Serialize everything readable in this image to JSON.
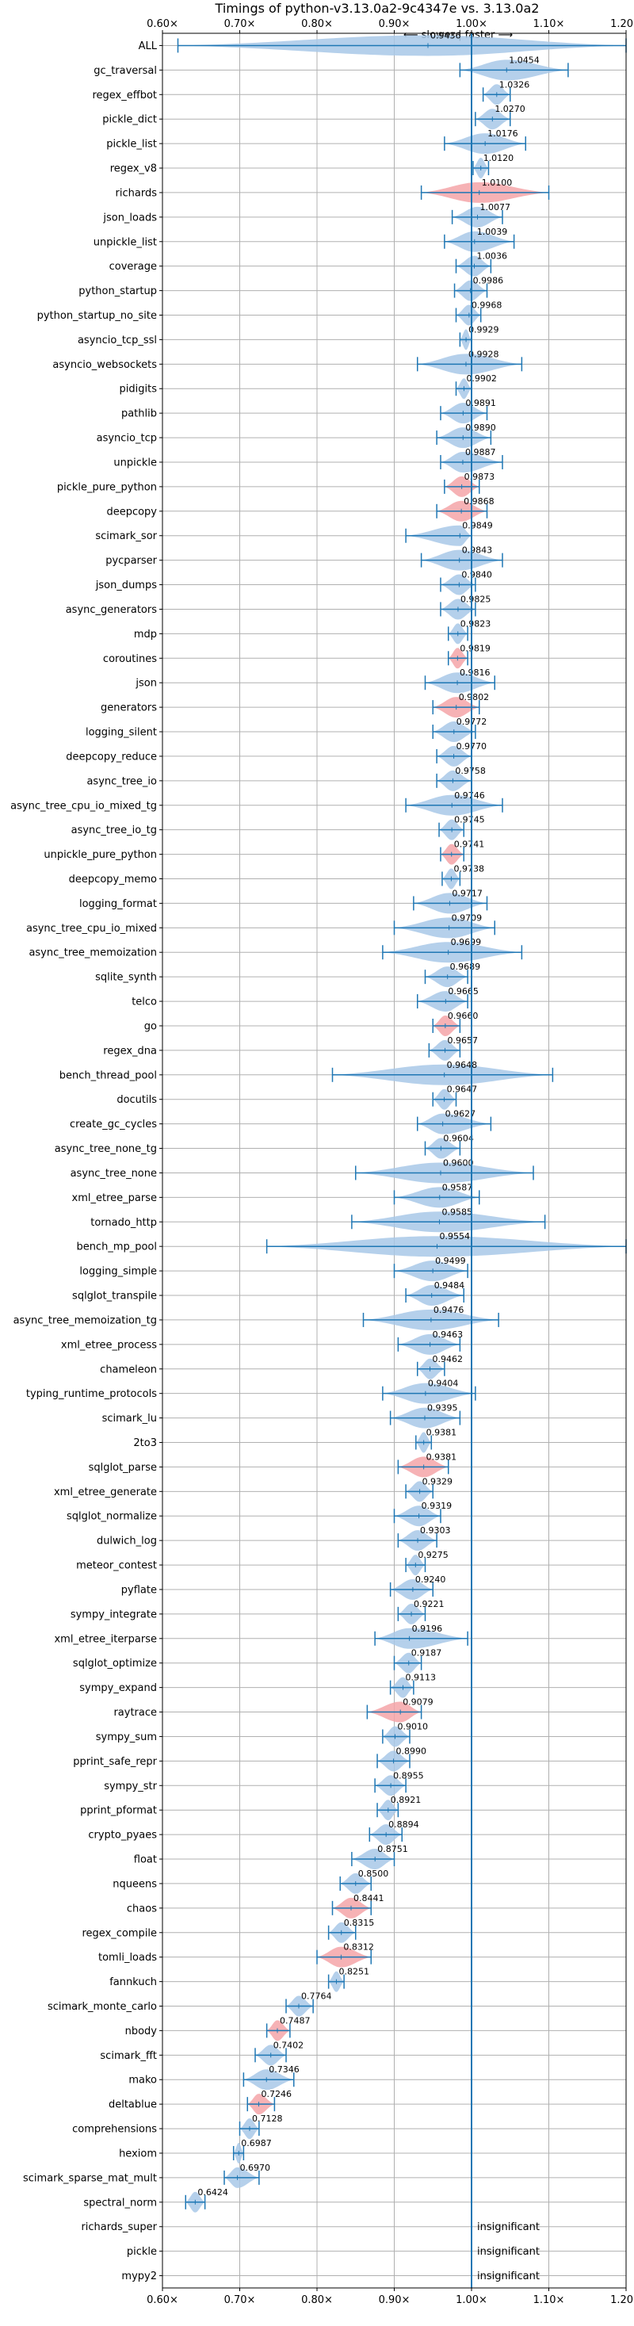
{
  "chart_data": {
    "type": "violin",
    "title": "Timings of python-v3.13.0a2-9c4347e vs. 3.13.0a2",
    "direction_label": "⟵ slower | faster ⟶",
    "x_ticks": [
      "0.60×",
      "0.70×",
      "0.80×",
      "0.90×",
      "1.00×",
      "1.10×",
      "1.20×"
    ],
    "x_tick_values": [
      0.6,
      0.7,
      0.8,
      0.9,
      1.0,
      1.1,
      1.2
    ],
    "xlim": [
      0.6,
      1.2
    ],
    "reference_line": 1.0,
    "grid": true,
    "colors": {
      "normal": "#a8c8e8",
      "highlight": "#f4a4a8",
      "line": "#1f77b4"
    },
    "benchmarks": [
      {
        "name": "ALL",
        "label": "0.9436",
        "mean": 0.9436,
        "min": 0.62,
        "max": 1.2,
        "kind": "normal"
      },
      {
        "name": "gc_traversal",
        "label": "1.0454",
        "mean": 1.0454,
        "min": 0.985,
        "max": 1.125,
        "kind": "normal"
      },
      {
        "name": "regex_effbot",
        "label": "1.0326",
        "mean": 1.0326,
        "min": 1.015,
        "max": 1.05,
        "kind": "normal"
      },
      {
        "name": "pickle_dict",
        "label": "1.0270",
        "mean": 1.027,
        "min": 1.005,
        "max": 1.05,
        "kind": "normal"
      },
      {
        "name": "pickle_list",
        "label": "1.0176",
        "mean": 1.0176,
        "min": 0.965,
        "max": 1.07,
        "kind": "normal"
      },
      {
        "name": "regex_v8",
        "label": "1.0120",
        "mean": 1.012,
        "min": 1.002,
        "max": 1.022,
        "kind": "normal"
      },
      {
        "name": "richards",
        "label": "1.0100",
        "mean": 1.01,
        "min": 0.935,
        "max": 1.1,
        "kind": "highlight"
      },
      {
        "name": "json_loads",
        "label": "1.0077",
        "mean": 1.0077,
        "min": 0.975,
        "max": 1.04,
        "kind": "normal"
      },
      {
        "name": "unpickle_list",
        "label": "1.0039",
        "mean": 1.0039,
        "min": 0.965,
        "max": 1.055,
        "kind": "normal"
      },
      {
        "name": "coverage",
        "label": "1.0036",
        "mean": 1.0036,
        "min": 0.98,
        "max": 1.025,
        "kind": "normal"
      },
      {
        "name": "python_startup",
        "label": "0.9986",
        "mean": 0.9986,
        "min": 0.978,
        "max": 1.02,
        "kind": "normal"
      },
      {
        "name": "python_startup_no_site",
        "label": "0.9968",
        "mean": 0.9968,
        "min": 0.98,
        "max": 1.012,
        "kind": "normal"
      },
      {
        "name": "asyncio_tcp_ssl",
        "label": "0.9929",
        "mean": 0.9929,
        "min": 0.985,
        "max": 1.0,
        "kind": "normal"
      },
      {
        "name": "asyncio_websockets",
        "label": "0.9928",
        "mean": 0.9928,
        "min": 0.93,
        "max": 1.065,
        "kind": "normal"
      },
      {
        "name": "pidigits",
        "label": "0.9902",
        "mean": 0.9902,
        "min": 0.98,
        "max": 1.0,
        "kind": "normal"
      },
      {
        "name": "pathlib",
        "label": "0.9891",
        "mean": 0.9891,
        "min": 0.96,
        "max": 1.02,
        "kind": "normal"
      },
      {
        "name": "asyncio_tcp",
        "label": "0.9890",
        "mean": 0.989,
        "min": 0.955,
        "max": 1.025,
        "kind": "normal"
      },
      {
        "name": "unpickle",
        "label": "0.9887",
        "mean": 0.9887,
        "min": 0.96,
        "max": 1.04,
        "kind": "normal"
      },
      {
        "name": "pickle_pure_python",
        "label": "0.9873",
        "mean": 0.9873,
        "min": 0.965,
        "max": 1.01,
        "kind": "highlight"
      },
      {
        "name": "deepcopy",
        "label": "0.9868",
        "mean": 0.9868,
        "min": 0.955,
        "max": 1.02,
        "kind": "highlight"
      },
      {
        "name": "scimark_sor",
        "label": "0.9849",
        "mean": 0.9849,
        "min": 0.915,
        "max": 1.0,
        "kind": "normal"
      },
      {
        "name": "pycparser",
        "label": "0.9843",
        "mean": 0.9843,
        "min": 0.935,
        "max": 1.04,
        "kind": "normal"
      },
      {
        "name": "json_dumps",
        "label": "0.9840",
        "mean": 0.984,
        "min": 0.96,
        "max": 1.005,
        "kind": "normal"
      },
      {
        "name": "async_generators",
        "label": "0.9825",
        "mean": 0.9825,
        "min": 0.96,
        "max": 1.005,
        "kind": "normal"
      },
      {
        "name": "mdp",
        "label": "0.9823",
        "mean": 0.9823,
        "min": 0.97,
        "max": 0.995,
        "kind": "normal"
      },
      {
        "name": "coroutines",
        "label": "0.9819",
        "mean": 0.9819,
        "min": 0.97,
        "max": 0.995,
        "kind": "highlight"
      },
      {
        "name": "json",
        "label": "0.9816",
        "mean": 0.9816,
        "min": 0.94,
        "max": 1.03,
        "kind": "normal"
      },
      {
        "name": "generators",
        "label": "0.9802",
        "mean": 0.9802,
        "min": 0.95,
        "max": 1.01,
        "kind": "highlight"
      },
      {
        "name": "logging_silent",
        "label": "0.9772",
        "mean": 0.9772,
        "min": 0.95,
        "max": 1.005,
        "kind": "normal"
      },
      {
        "name": "deepcopy_reduce",
        "label": "0.9770",
        "mean": 0.977,
        "min": 0.955,
        "max": 1.0,
        "kind": "normal"
      },
      {
        "name": "async_tree_io",
        "label": "0.9758",
        "mean": 0.9758,
        "min": 0.955,
        "max": 1.0,
        "kind": "normal"
      },
      {
        "name": "async_tree_cpu_io_mixed_tg",
        "label": "0.9746",
        "mean": 0.9746,
        "min": 0.915,
        "max": 1.04,
        "kind": "normal"
      },
      {
        "name": "async_tree_io_tg",
        "label": "0.9745",
        "mean": 0.9745,
        "min": 0.958,
        "max": 0.99,
        "kind": "normal"
      },
      {
        "name": "unpickle_pure_python",
        "label": "0.9741",
        "mean": 0.9741,
        "min": 0.96,
        "max": 0.99,
        "kind": "highlight"
      },
      {
        "name": "deepcopy_memo",
        "label": "0.9738",
        "mean": 0.9738,
        "min": 0.962,
        "max": 0.985,
        "kind": "normal"
      },
      {
        "name": "logging_format",
        "label": "0.9717",
        "mean": 0.9717,
        "min": 0.925,
        "max": 1.02,
        "kind": "normal"
      },
      {
        "name": "async_tree_cpu_io_mixed",
        "label": "0.9709",
        "mean": 0.9709,
        "min": 0.9,
        "max": 1.03,
        "kind": "normal"
      },
      {
        "name": "async_tree_memoization",
        "label": "0.9699",
        "mean": 0.9699,
        "min": 0.885,
        "max": 1.065,
        "kind": "normal"
      },
      {
        "name": "sqlite_synth",
        "label": "0.9689",
        "mean": 0.9689,
        "min": 0.94,
        "max": 0.995,
        "kind": "normal"
      },
      {
        "name": "telco",
        "label": "0.9665",
        "mean": 0.9665,
        "min": 0.93,
        "max": 0.995,
        "kind": "normal"
      },
      {
        "name": "go",
        "label": "0.9660",
        "mean": 0.966,
        "min": 0.95,
        "max": 0.985,
        "kind": "highlight"
      },
      {
        "name": "regex_dna",
        "label": "0.9657",
        "mean": 0.9657,
        "min": 0.945,
        "max": 0.985,
        "kind": "normal"
      },
      {
        "name": "bench_thread_pool",
        "label": "0.9648",
        "mean": 0.9648,
        "min": 0.82,
        "max": 1.105,
        "kind": "normal"
      },
      {
        "name": "docutils",
        "label": "0.9647",
        "mean": 0.9647,
        "min": 0.95,
        "max": 0.98,
        "kind": "normal"
      },
      {
        "name": "create_gc_cycles",
        "label": "0.9627",
        "mean": 0.9627,
        "min": 0.93,
        "max": 1.025,
        "kind": "normal"
      },
      {
        "name": "async_tree_none_tg",
        "label": "0.9604",
        "mean": 0.9604,
        "min": 0.94,
        "max": 0.985,
        "kind": "normal"
      },
      {
        "name": "async_tree_none",
        "label": "0.9600",
        "mean": 0.96,
        "min": 0.85,
        "max": 1.08,
        "kind": "normal"
      },
      {
        "name": "xml_etree_parse",
        "label": "0.9587",
        "mean": 0.9587,
        "min": 0.9,
        "max": 1.01,
        "kind": "normal"
      },
      {
        "name": "tornado_http",
        "label": "0.9585",
        "mean": 0.9585,
        "min": 0.845,
        "max": 1.095,
        "kind": "normal"
      },
      {
        "name": "bench_mp_pool",
        "label": "0.9554",
        "mean": 0.9554,
        "min": 0.735,
        "max": 1.2,
        "kind": "normal"
      },
      {
        "name": "logging_simple",
        "label": "0.9499",
        "mean": 0.9499,
        "min": 0.9,
        "max": 0.995,
        "kind": "normal"
      },
      {
        "name": "sqlglot_transpile",
        "label": "0.9484",
        "mean": 0.9484,
        "min": 0.915,
        "max": 0.99,
        "kind": "normal"
      },
      {
        "name": "async_tree_memoization_tg",
        "label": "0.9476",
        "mean": 0.9476,
        "min": 0.86,
        "max": 1.035,
        "kind": "normal"
      },
      {
        "name": "xml_etree_process",
        "label": "0.9463",
        "mean": 0.9463,
        "min": 0.905,
        "max": 0.985,
        "kind": "normal"
      },
      {
        "name": "chameleon",
        "label": "0.9462",
        "mean": 0.9462,
        "min": 0.93,
        "max": 0.965,
        "kind": "normal"
      },
      {
        "name": "typing_runtime_protocols",
        "label": "0.9404",
        "mean": 0.9404,
        "min": 0.885,
        "max": 1.005,
        "kind": "normal"
      },
      {
        "name": "scimark_lu",
        "label": "0.9395",
        "mean": 0.9395,
        "min": 0.895,
        "max": 0.985,
        "kind": "normal"
      },
      {
        "name": "2to3",
        "label": "0.9381",
        "mean": 0.9381,
        "min": 0.928,
        "max": 0.948,
        "kind": "normal"
      },
      {
        "name": "sqlglot_parse",
        "label": "0.9381",
        "mean": 0.9381,
        "min": 0.905,
        "max": 0.97,
        "kind": "highlight"
      },
      {
        "name": "xml_etree_generate",
        "label": "0.9329",
        "mean": 0.9329,
        "min": 0.915,
        "max": 0.95,
        "kind": "normal"
      },
      {
        "name": "sqlglot_normalize",
        "label": "0.9319",
        "mean": 0.9319,
        "min": 0.9,
        "max": 0.96,
        "kind": "normal"
      },
      {
        "name": "dulwich_log",
        "label": "0.9303",
        "mean": 0.9303,
        "min": 0.905,
        "max": 0.955,
        "kind": "normal"
      },
      {
        "name": "meteor_contest",
        "label": "0.9275",
        "mean": 0.9275,
        "min": 0.915,
        "max": 0.94,
        "kind": "normal"
      },
      {
        "name": "pyflate",
        "label": "0.9240",
        "mean": 0.924,
        "min": 0.895,
        "max": 0.95,
        "kind": "normal"
      },
      {
        "name": "sympy_integrate",
        "label": "0.9221",
        "mean": 0.9221,
        "min": 0.905,
        "max": 0.94,
        "kind": "normal"
      },
      {
        "name": "xml_etree_iterparse",
        "label": "0.9196",
        "mean": 0.9196,
        "min": 0.875,
        "max": 0.995,
        "kind": "normal"
      },
      {
        "name": "sqlglot_optimize",
        "label": "0.9187",
        "mean": 0.9187,
        "min": 0.9,
        "max": 0.935,
        "kind": "normal"
      },
      {
        "name": "sympy_expand",
        "label": "0.9113",
        "mean": 0.9113,
        "min": 0.895,
        "max": 0.925,
        "kind": "normal"
      },
      {
        "name": "raytrace",
        "label": "0.9079",
        "mean": 0.9079,
        "min": 0.865,
        "max": 0.935,
        "kind": "highlight"
      },
      {
        "name": "sympy_sum",
        "label": "0.9010",
        "mean": 0.901,
        "min": 0.885,
        "max": 0.92,
        "kind": "normal"
      },
      {
        "name": "pprint_safe_repr",
        "label": "0.8990",
        "mean": 0.899,
        "min": 0.878,
        "max": 0.92,
        "kind": "normal"
      },
      {
        "name": "sympy_str",
        "label": "0.8955",
        "mean": 0.8955,
        "min": 0.875,
        "max": 0.915,
        "kind": "normal"
      },
      {
        "name": "pprint_pformat",
        "label": "0.8921",
        "mean": 0.8921,
        "min": 0.878,
        "max": 0.905,
        "kind": "normal"
      },
      {
        "name": "crypto_pyaes",
        "label": "0.8894",
        "mean": 0.8894,
        "min": 0.868,
        "max": 0.91,
        "kind": "normal"
      },
      {
        "name": "float",
        "label": "0.8751",
        "mean": 0.8751,
        "min": 0.845,
        "max": 0.9,
        "kind": "normal"
      },
      {
        "name": "nqueens",
        "label": "0.8500",
        "mean": 0.85,
        "min": 0.83,
        "max": 0.87,
        "kind": "normal"
      },
      {
        "name": "chaos",
        "label": "0.8441",
        "mean": 0.8441,
        "min": 0.82,
        "max": 0.87,
        "kind": "highlight"
      },
      {
        "name": "regex_compile",
        "label": "0.8315",
        "mean": 0.8315,
        "min": 0.815,
        "max": 0.85,
        "kind": "normal"
      },
      {
        "name": "tomli_loads",
        "label": "0.8312",
        "mean": 0.8312,
        "min": 0.8,
        "max": 0.87,
        "kind": "highlight"
      },
      {
        "name": "fannkuch",
        "label": "0.8251",
        "mean": 0.8251,
        "min": 0.815,
        "max": 0.835,
        "kind": "normal"
      },
      {
        "name": "scimark_monte_carlo",
        "label": "0.7764",
        "mean": 0.7764,
        "min": 0.76,
        "max": 0.795,
        "kind": "normal"
      },
      {
        "name": "nbody",
        "label": "0.7487",
        "mean": 0.7487,
        "min": 0.735,
        "max": 0.765,
        "kind": "highlight"
      },
      {
        "name": "scimark_fft",
        "label": "0.7402",
        "mean": 0.7402,
        "min": 0.72,
        "max": 0.76,
        "kind": "normal"
      },
      {
        "name": "mako",
        "label": "0.7346",
        "mean": 0.7346,
        "min": 0.705,
        "max": 0.77,
        "kind": "normal"
      },
      {
        "name": "deltablue",
        "label": "0.7246",
        "mean": 0.7246,
        "min": 0.71,
        "max": 0.745,
        "kind": "highlight"
      },
      {
        "name": "comprehensions",
        "label": "0.7128",
        "mean": 0.7128,
        "min": 0.7,
        "max": 0.725,
        "kind": "normal"
      },
      {
        "name": "hexiom",
        "label": "0.6987",
        "mean": 0.6987,
        "min": 0.692,
        "max": 0.705,
        "kind": "normal"
      },
      {
        "name": "scimark_sparse_mat_mult",
        "label": "0.6970",
        "mean": 0.697,
        "min": 0.68,
        "max": 0.725,
        "kind": "normal"
      },
      {
        "name": "spectral_norm",
        "label": "0.6424",
        "mean": 0.6424,
        "min": 0.63,
        "max": 0.655,
        "kind": "normal"
      },
      {
        "name": "richards_super",
        "label": "insignificant",
        "mean": null,
        "min": null,
        "max": null,
        "kind": "insignificant"
      },
      {
        "name": "pickle",
        "label": "insignificant",
        "mean": null,
        "min": null,
        "max": null,
        "kind": "insignificant"
      },
      {
        "name": "mypy2",
        "label": "insignificant",
        "mean": null,
        "min": null,
        "max": null,
        "kind": "insignificant"
      }
    ]
  }
}
